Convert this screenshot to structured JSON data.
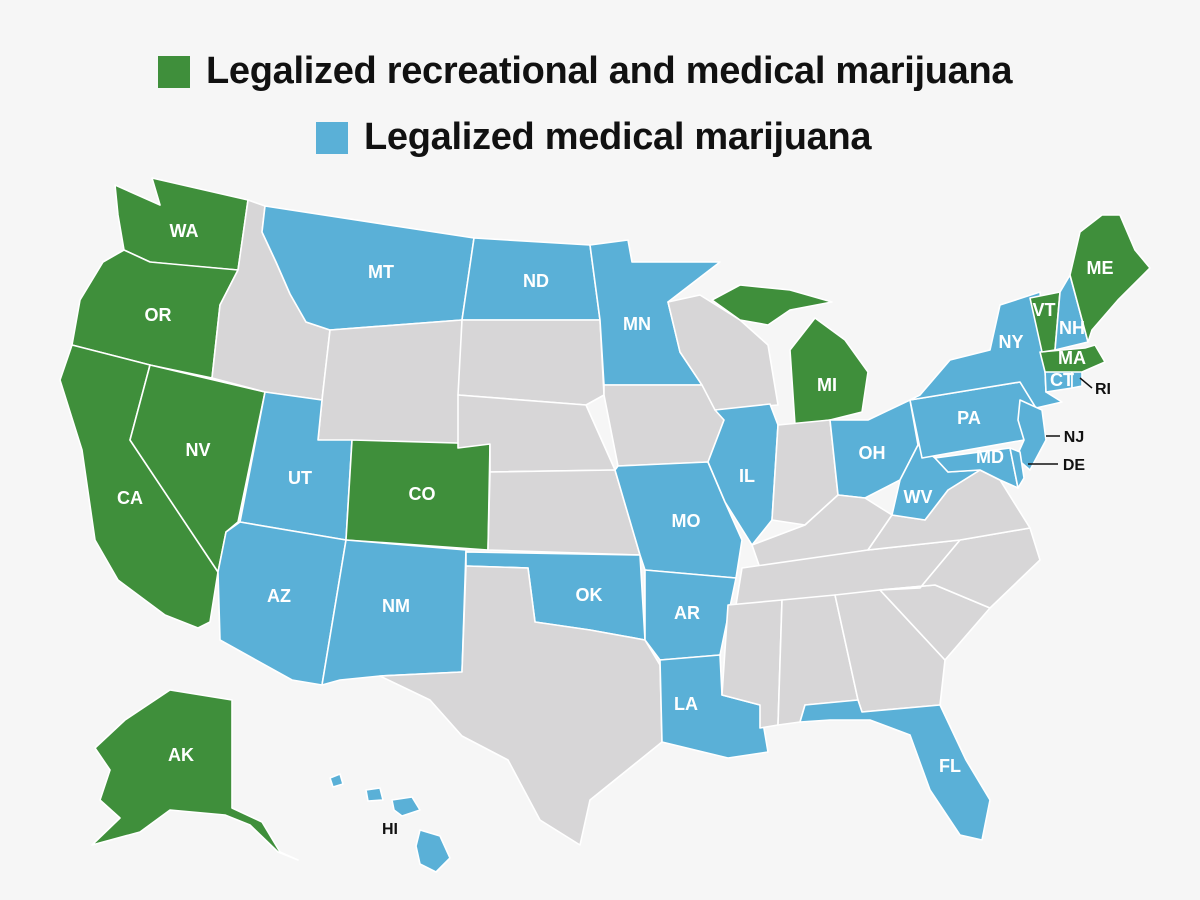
{
  "legend": {
    "recreational": {
      "label": "Legalized recreational and medical marijuana",
      "color": "#3f8f3b"
    },
    "medical": {
      "label": "Legalized medical marijuana",
      "color": "#5ab0d7"
    },
    "none": {
      "color": "#d7d6d7"
    }
  },
  "states": {
    "WA": {
      "label": "WA",
      "status": "recreational"
    },
    "OR": {
      "label": "OR",
      "status": "recreational"
    },
    "CA": {
      "label": "CA",
      "status": "recreational"
    },
    "NV": {
      "label": "NV",
      "status": "recreational"
    },
    "ID": {
      "label": "",
      "status": "none"
    },
    "MT": {
      "label": "MT",
      "status": "medical"
    },
    "WY": {
      "label": "",
      "status": "none"
    },
    "UT": {
      "label": "UT",
      "status": "medical"
    },
    "CO": {
      "label": "CO",
      "status": "recreational"
    },
    "AZ": {
      "label": "AZ",
      "status": "medical"
    },
    "NM": {
      "label": "NM",
      "status": "medical"
    },
    "ND": {
      "label": "ND",
      "status": "medical"
    },
    "SD": {
      "label": "",
      "status": "none"
    },
    "NE": {
      "label": "",
      "status": "none"
    },
    "KS": {
      "label": "",
      "status": "none"
    },
    "OK": {
      "label": "OK",
      "status": "medical"
    },
    "TX": {
      "label": "",
      "status": "none"
    },
    "MN": {
      "label": "MN",
      "status": "medical"
    },
    "IA": {
      "label": "",
      "status": "none"
    },
    "MO": {
      "label": "MO",
      "status": "medical"
    },
    "AR": {
      "label": "AR",
      "status": "medical"
    },
    "LA": {
      "label": "LA",
      "status": "medical"
    },
    "WI": {
      "label": "",
      "status": "none"
    },
    "IL": {
      "label": "IL",
      "status": "medical"
    },
    "MI": {
      "label": "MI",
      "status": "recreational"
    },
    "IN": {
      "label": "",
      "status": "none"
    },
    "OH": {
      "label": "OH",
      "status": "medical"
    },
    "KY": {
      "label": "",
      "status": "none"
    },
    "TN": {
      "label": "",
      "status": "none"
    },
    "MS": {
      "label": "",
      "status": "none"
    },
    "AL": {
      "label": "",
      "status": "none"
    },
    "GA": {
      "label": "",
      "status": "none"
    },
    "FL": {
      "label": "FL",
      "status": "medical"
    },
    "SC": {
      "label": "",
      "status": "none"
    },
    "NC": {
      "label": "",
      "status": "none"
    },
    "VA": {
      "label": "",
      "status": "none"
    },
    "WV": {
      "label": "WV",
      "status": "medical"
    },
    "PA": {
      "label": "PA",
      "status": "medical"
    },
    "NY": {
      "label": "NY",
      "status": "medical"
    },
    "VT": {
      "label": "VT",
      "status": "recreational"
    },
    "NH": {
      "label": "NH",
      "status": "medical"
    },
    "ME": {
      "label": "ME",
      "status": "recreational"
    },
    "MA": {
      "label": "MA",
      "status": "recreational"
    },
    "CT": {
      "label": "CT",
      "status": "medical"
    },
    "RI": {
      "label": "RI",
      "status": "medical"
    },
    "NJ": {
      "label": "NJ",
      "status": "medical"
    },
    "DE": {
      "label": "DE",
      "status": "medical"
    },
    "MD": {
      "label": "MD",
      "status": "medical"
    },
    "AK": {
      "label": "AK",
      "status": "recreational"
    },
    "HI": {
      "label": "HI",
      "status": "medical"
    }
  }
}
